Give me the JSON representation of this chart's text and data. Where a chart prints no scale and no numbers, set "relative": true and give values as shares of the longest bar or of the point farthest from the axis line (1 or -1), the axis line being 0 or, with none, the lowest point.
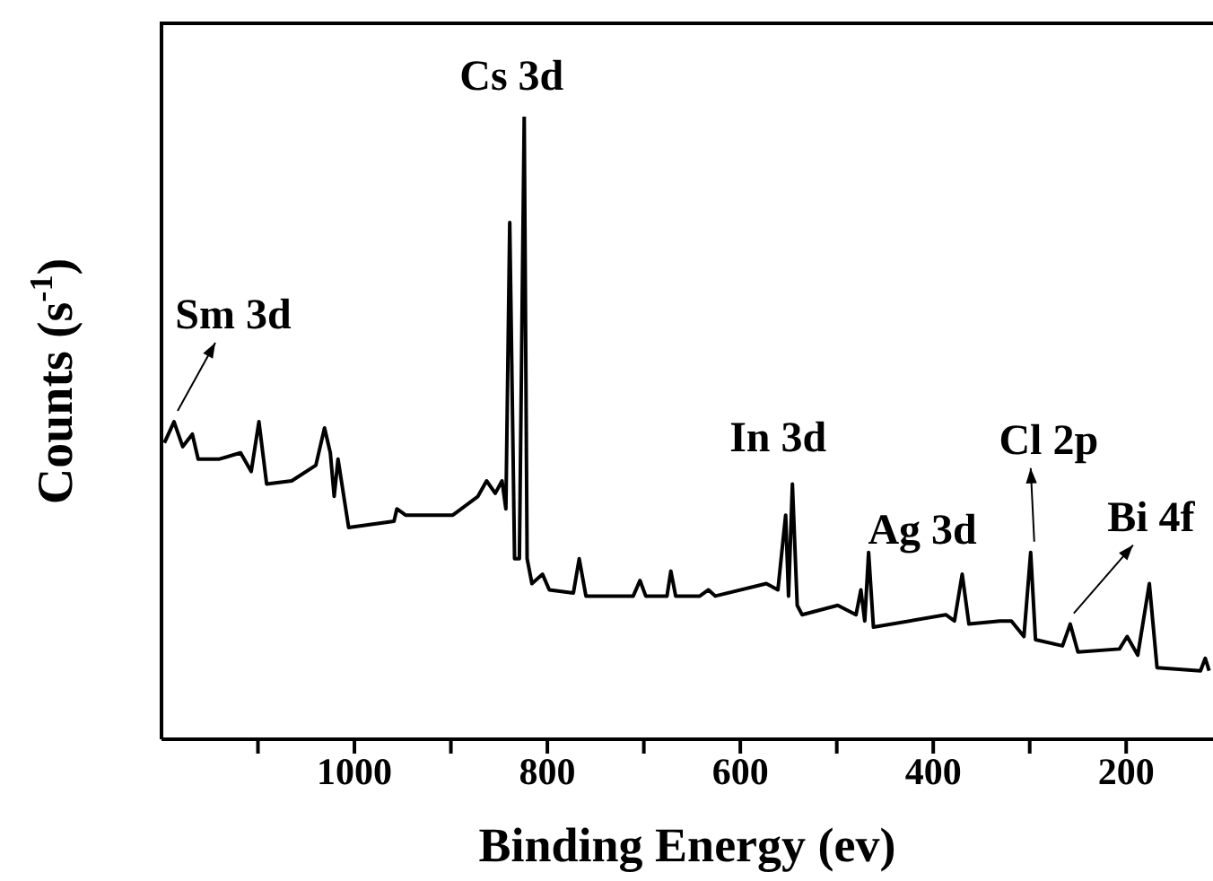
{
  "chart_data": {
    "type": "line",
    "xlabel": "Binding Energy (ev)",
    "ylabel": "Counts (s$^{-1}$)",
    "relative": true,
    "xlim": [
      1200,
      110
    ],
    "xticks": [
      {
        "value": 1100,
        "label": null
      },
      1000,
      {
        "value": 900,
        "label": null
      },
      800,
      {
        "value": 700,
        "label": null
      },
      600,
      {
        "value": 500,
        "label": null
      },
      400,
      {
        "value": 300,
        "label": null
      },
      200
    ],
    "x": [
      1197,
      1187,
      1178,
      1168,
      1162,
      1140,
      1118,
      1107,
      1099,
      1091,
      1065,
      1040,
      1031,
      1025,
      1021,
      1017,
      1006,
      959,
      956,
      947,
      898,
      872,
      863,
      854,
      847,
      843,
      839,
      834,
      829,
      824,
      821,
      816,
      805,
      798,
      773,
      767,
      760,
      711,
      704,
      698,
      676,
      672,
      667,
      642,
      633,
      626,
      573,
      561,
      553,
      550,
      546,
      541,
      536,
      499,
      480,
      475,
      471,
      467,
      462,
      387,
      378,
      370,
      363,
      331,
      319,
      306,
      299,
      294,
      266,
      258,
      250,
      207,
      199,
      188,
      176,
      168,
      123,
      118,
      114
    ],
    "series": [
      {
        "color": "#000000",
        "values": [
          0.476,
          0.51,
          0.47,
          0.49,
          0.45,
          0.45,
          0.46,
          0.43,
          0.51,
          0.41,
          0.415,
          0.44,
          0.5,
          0.46,
          0.39,
          0.45,
          0.34,
          0.35,
          0.37,
          0.36,
          0.36,
          0.39,
          0.415,
          0.395,
          0.415,
          0.37,
          0.83,
          0.29,
          0.29,
          1,
          0.29,
          0.25,
          0.265,
          0.24,
          0.235,
          0.29,
          0.23,
          0.23,
          0.255,
          0.23,
          0.23,
          0.27,
          0.23,
          0.23,
          0.24,
          0.23,
          0.25,
          0.24,
          0.36,
          0.23,
          0.41,
          0.215,
          0.2,
          0.215,
          0.2,
          0.24,
          0.19,
          0.3,
          0.18,
          0.2,
          0.19,
          0.265,
          0.185,
          0.19,
          0.19,
          0.165,
          0.3,
          0.16,
          0.15,
          0.185,
          0.14,
          0.145,
          0.165,
          0.135,
          0.25,
          0.115,
          0.11,
          0.13,
          0.11
        ]
      }
    ],
    "marker": "none",
    "line_style": "solid",
    "grid": false,
    "legend": false,
    "annotations": [
      {
        "text": "Sm 3d",
        "x": 1187,
        "y": 0.51
      },
      {
        "text": "Cs 3d",
        "x": 824,
        "y": 1
      },
      {
        "text": "In 3d",
        "x": 546,
        "y": 0.41
      },
      {
        "text": "Ag 3d",
        "x": 467,
        "y": 0.3
      },
      {
        "text": "Cl 2p",
        "x": 299,
        "y": 0.3
      },
      {
        "text": "Bi 4f",
        "x": 258,
        "y": 0.185
      }
    ]
  }
}
